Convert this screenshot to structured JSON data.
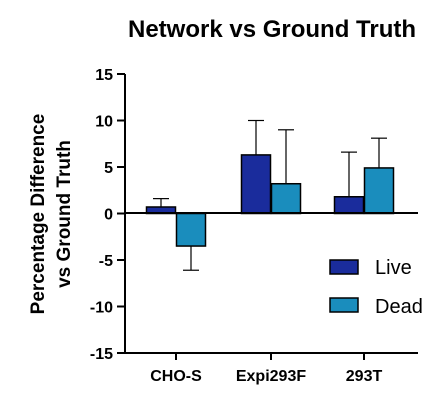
{
  "chart_data": {
    "type": "bar",
    "title": "Network vs Ground Truth",
    "ylabel_line1": "Percentage Difference",
    "ylabel_line2": "vs Ground Truth",
    "xlabel": "",
    "categories": [
      "CHO-S",
      "Expi293F",
      "293T"
    ],
    "series": [
      {
        "name": "Live",
        "values": [
          0.7,
          6.3,
          1.8
        ],
        "errors": [
          0.9,
          3.7,
          4.8
        ],
        "color": "#1a2c9c"
      },
      {
        "name": "Dead",
        "values": [
          -3.5,
          3.2,
          4.9
        ],
        "errors": [
          2.6,
          5.8,
          3.2
        ],
        "color": "#1a8dbd"
      }
    ],
    "ylim": [
      -15,
      15
    ],
    "yticks": [
      {
        "value": 15,
        "label": "15"
      },
      {
        "value": 10,
        "label": "10"
      },
      {
        "value": 5,
        "label": "5"
      },
      {
        "value": 0,
        "label": "0"
      },
      {
        "value": -5,
        "label": "-5"
      },
      {
        "value": -10,
        "label": "-10"
      },
      {
        "value": -15,
        "label": "-15"
      }
    ],
    "legend_position": "right",
    "grid": false
  }
}
